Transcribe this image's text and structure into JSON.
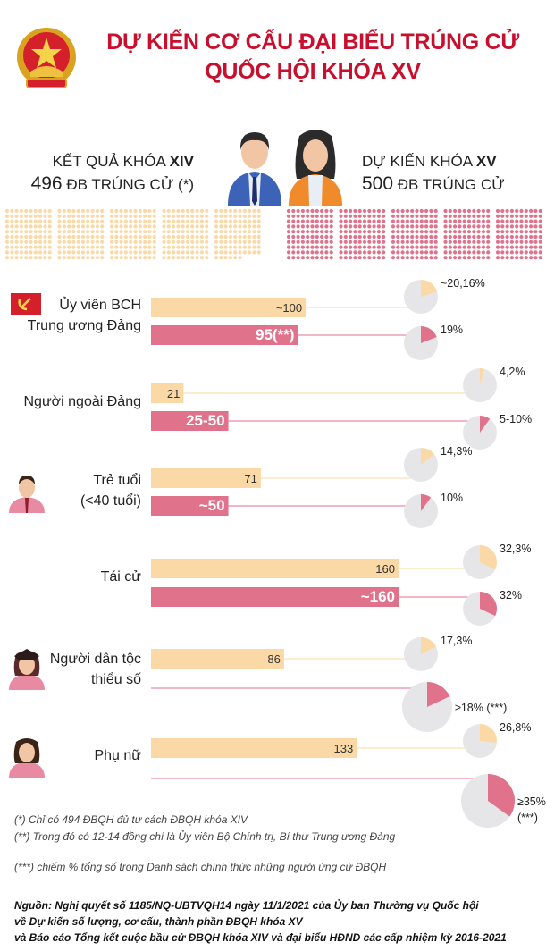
{
  "header": {
    "title_line1": "DỰ KIẾN CƠ CẤU ĐẠI BIỂU TRÚNG CỬ",
    "title_line2": "QUỐC HỘI KHÓA XV",
    "left_caption_pre": "KẾT QUẢ KHÓA ",
    "left_caption_bold": "XIV",
    "left_count": "496",
    "left_count_suffix": " ĐB TRÚNG CỬ (*)",
    "right_caption_pre": "DỰ KIẾN KHÓA ",
    "right_caption_bold": "XV",
    "right_count": "500",
    "right_count_suffix": " ĐB TRÚNG CỬ"
  },
  "colors": {
    "title": "#c8102e",
    "xiv": "#fbd9a6",
    "xv": "#e0738b",
    "pie_bg": "#e6e6e8"
  },
  "icons": [
    "national-emblem",
    "man-icon",
    "woman-icon",
    "party-flag-icon",
    "young-man-icon",
    "ethnic-woman-icon",
    "woman-icon"
  ],
  "chart_data": {
    "type": "bar",
    "units": "đại biểu",
    "dot_grid": {
      "xiv_total": 496,
      "xv_total": 500
    },
    "groups": [
      {
        "label_lines": [
          "Ủy viên BCH",
          "Trung ương Đảng"
        ],
        "icon": "party-flag-icon",
        "xiv": {
          "value": 100,
          "label": "~100",
          "pct": 20.16,
          "pct_label": "~20,16%"
        },
        "xv": {
          "value": 95,
          "label": "95(**)",
          "pct": 19,
          "pct_label": "19%"
        }
      },
      {
        "label_lines": [
          "Người ngoài Đảng"
        ],
        "icon": "",
        "xiv": {
          "value": 21,
          "label": "21",
          "pct": 4.2,
          "pct_label": "4,2%"
        },
        "xv": {
          "value": [
            25,
            50
          ],
          "label": "25-50",
          "pct": [
            5,
            10
          ],
          "pct_label": "5-10%"
        }
      },
      {
        "label_lines": [
          "Trẻ tuổi",
          "(<40 tuổi)"
        ],
        "icon": "young-man-icon",
        "xiv": {
          "value": 71,
          "label": "71",
          "pct": 14.3,
          "pct_label": "14,3%"
        },
        "xv": {
          "value": 50,
          "label": "~50",
          "pct": 10,
          "pct_label": "10%"
        }
      },
      {
        "label_lines": [
          "Tái cử"
        ],
        "icon": "",
        "xiv": {
          "value": 160,
          "label": "160",
          "pct": 32.3,
          "pct_label": "32,3%"
        },
        "xv": {
          "value": 160,
          "label": "~160",
          "pct": 32,
          "pct_label": "32%"
        }
      },
      {
        "label_lines": [
          "Người dân tộc",
          "thiểu số"
        ],
        "icon": "ethnic-woman-icon",
        "xiv": {
          "value": 86,
          "label": "86",
          "pct": 17.3,
          "pct_label": "17,3%"
        },
        "xv": {
          "value": null,
          "label": "",
          "pct": 18,
          "pct_label": "≥18% (***)"
        }
      },
      {
        "label_lines": [
          "Phụ nữ"
        ],
        "icon": "woman-icon",
        "xiv": {
          "value": 133,
          "label": "133",
          "pct": 26.8,
          "pct_label": "26,8%"
        },
        "xv": {
          "value": null,
          "label": "",
          "pct": 35,
          "pct_label": "≥35%",
          "pct_note": "(***)"
        }
      }
    ]
  },
  "footer": {
    "notes": [
      "(*) Chỉ có 494 ĐBQH đủ tư cách ĐBQH khóa XIV",
      "(**) Trong đó có 12-14 đồng chí là Ủy viên Bộ Chính trị, Bí thư Trung ương Đảng",
      "(***) chiếm % tổng số trong Danh sách chính thức những người ứng cử ĐBQH"
    ],
    "source": [
      "Nguồn: Nghị quyết số 1185/NQ-UBTVQH14 ngày 11/1/2021 của Ủy ban Thường vụ Quốc hội",
      "về Dự kiến số lượng, cơ cấu, thành phần ĐBQH khóa XV",
      "và Báo cáo Tổng kết cuộc bầu cử ĐBQH khóa XIV  và đại biểu HĐND các cấp nhiệm kỳ 2016-2021"
    ]
  }
}
